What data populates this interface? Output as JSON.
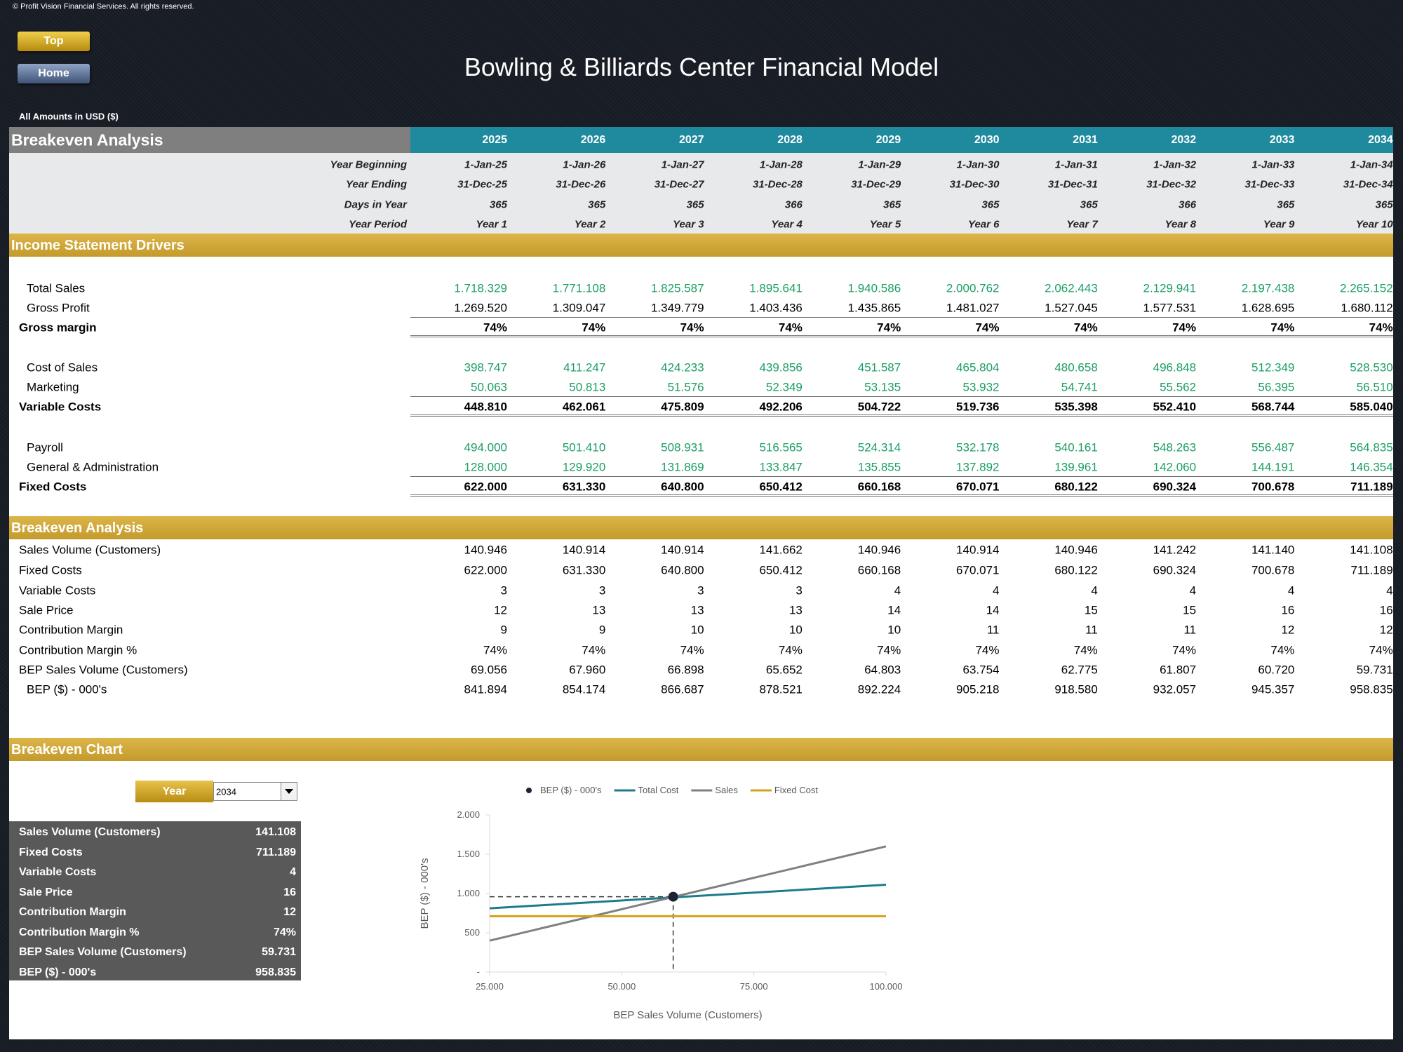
{
  "header": {
    "copyright": "© Profit Vision Financial Services. All rights reserved.",
    "buttons": [
      "Top",
      "Home"
    ],
    "title": "Bowling & Billiards Center Financial Model",
    "currency_note": "All Amounts in  USD ($)"
  },
  "table": {
    "title": "Breakeven Analysis",
    "years": [
      "2025",
      "2026",
      "2027",
      "2028",
      "2029",
      "2030",
      "2031",
      "2032",
      "2033",
      "2034"
    ],
    "info_rows": [
      {
        "label": "Year Beginning",
        "values": [
          "1-Jan-25",
          "1-Jan-26",
          "1-Jan-27",
          "1-Jan-28",
          "1-Jan-29",
          "1-Jan-30",
          "1-Jan-31",
          "1-Jan-32",
          "1-Jan-33",
          "1-Jan-34"
        ]
      },
      {
        "label": "Year Ending",
        "values": [
          "31-Dec-25",
          "31-Dec-26",
          "31-Dec-27",
          "31-Dec-28",
          "31-Dec-29",
          "31-Dec-30",
          "31-Dec-31",
          "31-Dec-32",
          "31-Dec-33",
          "31-Dec-34"
        ]
      },
      {
        "label": "Days in Year",
        "values": [
          "365",
          "365",
          "365",
          "366",
          "365",
          "365",
          "365",
          "366",
          "365",
          "365"
        ]
      },
      {
        "label": "Year Period",
        "values": [
          "Year 1",
          "Year 2",
          "Year 3",
          "Year 4",
          "Year 5",
          "Year 6",
          "Year 7",
          "Year 8",
          "Year 9",
          "Year 10"
        ]
      }
    ],
    "sections": [
      {
        "title": "Income Statement Drivers",
        "groups": [
          [
            {
              "label": "Total Sales",
              "indent": true,
              "color": "#1a9e63",
              "values": [
                "1.718.329",
                "1.771.108",
                "1.825.587",
                "1.895.641",
                "1.940.586",
                "2.000.762",
                "2.062.443",
                "2.129.941",
                "2.197.438",
                "2.265.152"
              ]
            },
            {
              "label": "Gross Profit",
              "indent": true,
              "values": [
                "1.269.520",
                "1.309.047",
                "1.349.779",
                "1.403.436",
                "1.435.865",
                "1.481.027",
                "1.527.045",
                "1.577.531",
                "1.628.695",
                "1.680.112"
              ]
            },
            {
              "label": "Gross margin",
              "bold": true,
              "total": true,
              "values": [
                "74%",
                "74%",
                "74%",
                "74%",
                "74%",
                "74%",
                "74%",
                "74%",
                "74%",
                "74%"
              ]
            }
          ],
          [
            {
              "label": "Cost of Sales",
              "indent": true,
              "color": "#1a9e63",
              "values": [
                "398.747",
                "411.247",
                "424.233",
                "439.856",
                "451.587",
                "465.804",
                "480.658",
                "496.848",
                "512.349",
                "528.530"
              ]
            },
            {
              "label": "Marketing",
              "indent": true,
              "color": "#1a9e63",
              "values": [
                "50.063",
                "50.813",
                "51.576",
                "52.349",
                "53.135",
                "53.932",
                "54.741",
                "55.562",
                "56.395",
                "56.510"
              ]
            },
            {
              "label": "Variable Costs",
              "bold": true,
              "total": true,
              "values": [
                "448.810",
                "462.061",
                "475.809",
                "492.206",
                "504.722",
                "519.736",
                "535.398",
                "552.410",
                "568.744",
                "585.040"
              ]
            }
          ],
          [
            {
              "label": "Payroll",
              "indent": true,
              "color": "#1a9e63",
              "values": [
                "494.000",
                "501.410",
                "508.931",
                "516.565",
                "524.314",
                "532.178",
                "540.161",
                "548.263",
                "556.487",
                "564.835"
              ]
            },
            {
              "label": "General & Administration",
              "indent": true,
              "color": "#1a9e63",
              "values": [
                "128.000",
                "129.920",
                "131.869",
                "133.847",
                "135.855",
                "137.892",
                "139.961",
                "142.060",
                "144.191",
                "146.354"
              ]
            },
            {
              "label": "Fixed Costs",
              "bold": true,
              "total": true,
              "values": [
                "622.000",
                "631.330",
                "640.800",
                "650.412",
                "660.168",
                "670.071",
                "680.122",
                "690.324",
                "700.678",
                "711.189"
              ]
            }
          ]
        ]
      },
      {
        "title": "Breakeven Analysis",
        "groups": [
          [
            {
              "label": "Sales Volume (Customers)",
              "values": [
                "140.946",
                "140.914",
                "140.914",
                "141.662",
                "140.946",
                "140.914",
                "140.946",
                "141.242",
                "141.140",
                "141.108"
              ]
            },
            {
              "label": "Fixed Costs",
              "values": [
                "622.000",
                "631.330",
                "640.800",
                "650.412",
                "660.168",
                "670.071",
                "680.122",
                "690.324",
                "700.678",
                "711.189"
              ]
            },
            {
              "label": "Variable Costs",
              "values": [
                "3",
                "3",
                "3",
                "3",
                "4",
                "4",
                "4",
                "4",
                "4",
                "4"
              ]
            },
            {
              "label": "Sale Price",
              "values": [
                "12",
                "13",
                "13",
                "13",
                "14",
                "14",
                "15",
                "15",
                "16",
                "16"
              ]
            },
            {
              "label": "Contribution Margin",
              "values": [
                "9",
                "9",
                "10",
                "10",
                "10",
                "11",
                "11",
                "11",
                "12",
                "12"
              ]
            },
            {
              "label": "Contribution Margin %",
              "values": [
                "74%",
                "74%",
                "74%",
                "74%",
                "74%",
                "74%",
                "74%",
                "74%",
                "74%",
                "74%"
              ]
            },
            {
              "label": "BEP Sales Volume (Customers)",
              "values": [
                "69.056",
                "67.960",
                "66.898",
                "65.652",
                "64.803",
                "63.754",
                "62.775",
                "61.807",
                "60.720",
                "59.731"
              ]
            },
            {
              "label": "BEP ($) - 000's",
              "indent": true,
              "values": [
                "841.894",
                "854.174",
                "866.687",
                "878.521",
                "892.224",
                "905.218",
                "918.580",
                "932.057",
                "945.357",
                "958.835"
              ]
            }
          ]
        ]
      }
    ]
  },
  "chart_section": {
    "title": "Breakeven Chart",
    "selector": {
      "label": "Year",
      "value": "2034"
    },
    "summary": [
      {
        "label": "Sales Volume (Customers)",
        "value": "141.108"
      },
      {
        "label": "Fixed Costs",
        "value": "711.189"
      },
      {
        "label": "Variable Costs",
        "value": "4"
      },
      {
        "label": "Sale Price",
        "value": "16"
      },
      {
        "label": "Contribution Margin",
        "value": "12"
      },
      {
        "label": "Contribution Margin %",
        "value": "74%"
      },
      {
        "label": "BEP Sales Volume (Customers)",
        "value": "59.731"
      },
      {
        "label": "BEP ($) - 000's",
        "value": "958.835"
      }
    ]
  },
  "chart_data": {
    "type": "line",
    "x_label": "BEP Sales Volume (Customers)",
    "y_label": "BEP ($) - 000's",
    "xlim": [
      25000,
      100000
    ],
    "xticks": [
      {
        "value": 25000,
        "label": "25.000"
      },
      {
        "value": 50000,
        "label": "50.000"
      },
      {
        "value": 75000,
        "label": "75.000"
      },
      {
        "value": 100000,
        "label": "100.000"
      }
    ],
    "ylim": [
      0,
      2000
    ],
    "yticks": [
      {
        "value": 0,
        "label": "-"
      },
      500,
      {
        "value": 1000,
        "label": "1.000"
      },
      {
        "value": 1500,
        "label": "1.500"
      },
      {
        "value": 2000,
        "label": "2.000"
      }
    ],
    "grid": false,
    "legend": "top",
    "series": [
      {
        "name": "BEP ($) - 000's",
        "type": "scatter",
        "color": "#1b2435",
        "x": [
          59731
        ],
        "values": [
          958.835
        ]
      },
      {
        "name": "Total Cost",
        "type": "line",
        "color": "#1d7b8c",
        "x": [
          25000,
          100000
        ],
        "values": [
          811.189,
          1111.189
        ]
      },
      {
        "name": "Sales",
        "type": "line",
        "color": "#808080",
        "x": [
          25000,
          100000
        ],
        "values": [
          400,
          1600
        ]
      },
      {
        "name": "Fixed Cost",
        "type": "line",
        "color": "#d4a017",
        "x": [
          25000,
          100000
        ],
        "values": [
          711.189,
          711.189
        ]
      }
    ]
  }
}
